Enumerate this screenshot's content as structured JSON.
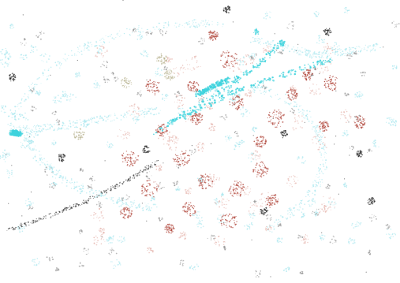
{
  "image": {
    "kind": "abstract scatter of particles on white",
    "palette": {
      "background": "#ffffff",
      "cyan": "#3fd3dd",
      "light_cyan": "#a6e6ee",
      "red": "#b24a3f",
      "pink": "#e4b0a8",
      "dark": "#2b2b2b",
      "grey": "#8c8c8c",
      "olive": "#b7b28e"
    }
  }
}
